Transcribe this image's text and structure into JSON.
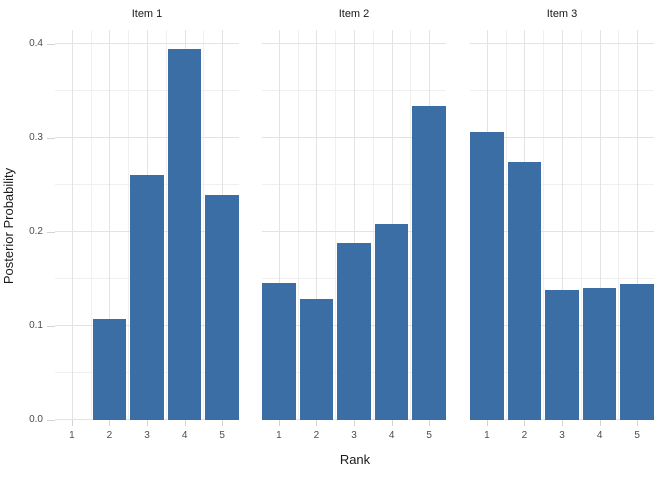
{
  "figure": {
    "colors": {
      "background": "#FFFFFF",
      "bar": "#3A6EA5",
      "grid_major": "#E3E3E3",
      "grid_minor": "#F0F0F0",
      "tick": "#D3D3D3",
      "axis_text": "#4D4D4D",
      "title_text": "#1A1A1A"
    }
  },
  "chart_data": {
    "type": "bar",
    "title": "",
    "xlabel": "Rank",
    "ylabel": "Posterior Probability",
    "grid": true,
    "legend": false,
    "x": [
      1,
      2,
      3,
      4,
      5
    ],
    "x_tick_labels": [
      "1",
      "2",
      "3",
      "4",
      "5"
    ],
    "y_ticks": [
      0,
      0.1,
      0.2,
      0.3,
      0.4
    ],
    "y_tick_labels": [
      "0.0",
      "0.1",
      "0.2",
      "0.3",
      "0.4"
    ],
    "xlim": [
      0.55,
      5.45
    ],
    "ylim": [
      0,
      0.415
    ],
    "bar_width_fraction": 0.9,
    "facets": [
      {
        "label": "Item 1",
        "values": [
          0,
          0.108,
          0.261,
          0.395,
          0.24
        ]
      },
      {
        "label": "Item 2",
        "values": [
          0.146,
          0.129,
          0.188,
          0.209,
          0.334
        ]
      },
      {
        "label": "Item 3",
        "values": [
          0.306,
          0.275,
          0.138,
          0.141,
          0.145
        ]
      }
    ]
  }
}
